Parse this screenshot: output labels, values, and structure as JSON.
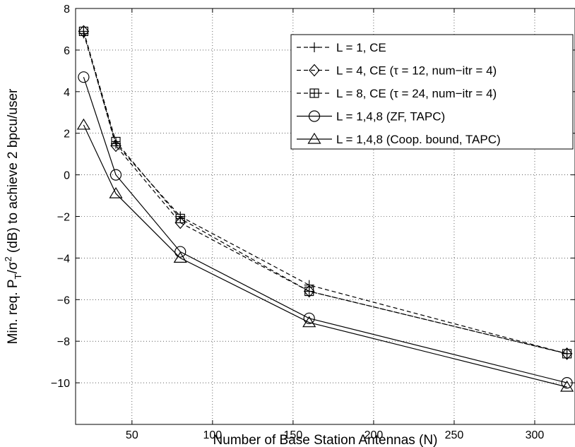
{
  "chart_data": {
    "type": "line",
    "xlabel": "Number of Base Station Antennas (N)",
    "ylabel_parts": [
      "Min. req. P",
      "T",
      "/σ",
      "2",
      " (dB) to achieve 2 bpcu/user"
    ],
    "xlim": [
      15,
      325
    ],
    "ylim": [
      -12,
      8
    ],
    "x_ticks": [
      50,
      100,
      150,
      200,
      250,
      300
    ],
    "y_ticks": [
      -10,
      -8,
      -6,
      -4,
      -2,
      0,
      2,
      4,
      6,
      8
    ],
    "x_tick_labels": [
      "50",
      "100",
      "150",
      "200",
      "250",
      "300"
    ],
    "y_tick_labels": [
      "−10",
      "−8",
      "−6",
      "−4",
      "−2",
      "0",
      "2",
      "4",
      "6",
      "8"
    ],
    "grid": true,
    "legend_position": "top-right",
    "series": [
      {
        "name": "L = 1, CE",
        "x": [
          20,
          40,
          80,
          160,
          320
        ],
        "values": [
          6.8,
          1.5,
          -2.0,
          -5.3,
          -8.6
        ],
        "marker": "plus",
        "style": "dashed"
      },
      {
        "name": "L = 4, CE (τ = 12, num−itr = 4)",
        "x": [
          20,
          40,
          80,
          160,
          320
        ],
        "values": [
          6.9,
          1.4,
          -2.3,
          -5.6,
          -8.6
        ],
        "marker": "diamond",
        "style": "dashed"
      },
      {
        "name": "L = 8, CE (τ = 24, num−itr = 4)",
        "x": [
          20,
          40,
          80,
          160,
          320
        ],
        "values": [
          6.9,
          1.6,
          -2.1,
          -5.6,
          -8.6
        ],
        "marker": "square-plus",
        "style": "dashed"
      },
      {
        "name": "L = 1,4,8 (ZF, TAPC)",
        "x": [
          20,
          40,
          80,
          160,
          320
        ],
        "values": [
          4.7,
          0.0,
          -3.7,
          -6.9,
          -10.0
        ],
        "marker": "circle",
        "style": "solid"
      },
      {
        "name": "L = 1,4,8 (Coop. bound, TAPC)",
        "x": [
          20,
          40,
          80,
          160,
          320
        ],
        "values": [
          2.4,
          -0.9,
          -4.0,
          -7.1,
          -10.2
        ],
        "marker": "triangle",
        "style": "solid"
      }
    ]
  }
}
